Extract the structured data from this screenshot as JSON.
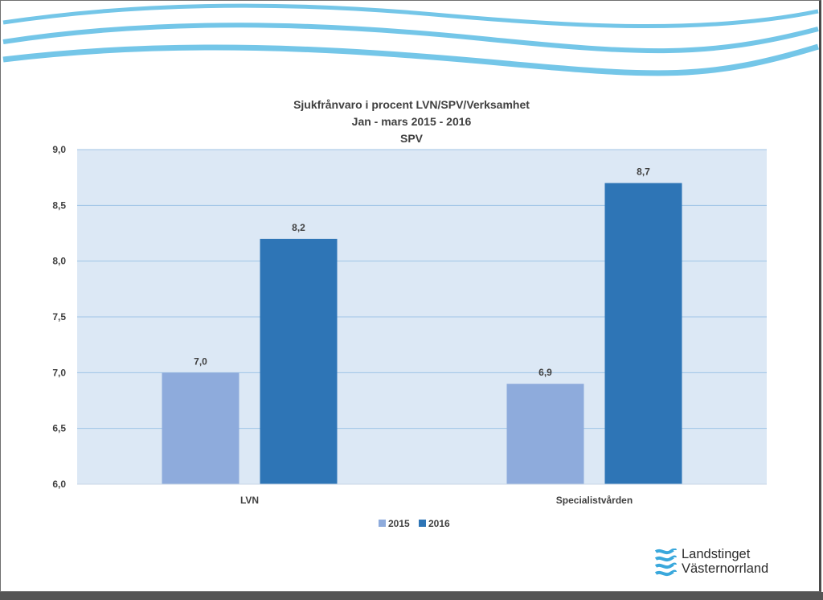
{
  "chart_data": {
    "type": "bar",
    "title": "Sjukfrånvaro i procent LVN/SPV/Verksamhet",
    "subtitle": "Jan - mars 2015 - 2016",
    "subtitle2": "SPV",
    "categories": [
      "LVN",
      "Specialistvården"
    ],
    "series": [
      {
        "name": "2015",
        "values": [
          7.0,
          6.9
        ],
        "labels": [
          "7,0",
          "6,9"
        ],
        "color": "#8eabdc"
      },
      {
        "name": "2016",
        "values": [
          8.2,
          8.7
        ],
        "labels": [
          "8,2",
          "8,7"
        ],
        "color": "#2e75b6"
      }
    ],
    "ylim": [
      6.0,
      9.0
    ],
    "yticks": [
      6.0,
      6.5,
      7.0,
      7.5,
      8.0,
      8.5,
      9.0
    ],
    "ytick_labels": [
      "6,0",
      "6,5",
      "7,0",
      "7,5",
      "8,0",
      "8,5",
      "9,0"
    ],
    "grid": true,
    "legend_position": "bottom",
    "plot_background": "#dce8f5",
    "gridline_color": "#9fc4e6"
  },
  "logo": {
    "line1": "Landstinget",
    "line2": "Västernorrland",
    "color": "#3aa8dc"
  },
  "decor": {
    "wave_color": "#74c6e8"
  }
}
